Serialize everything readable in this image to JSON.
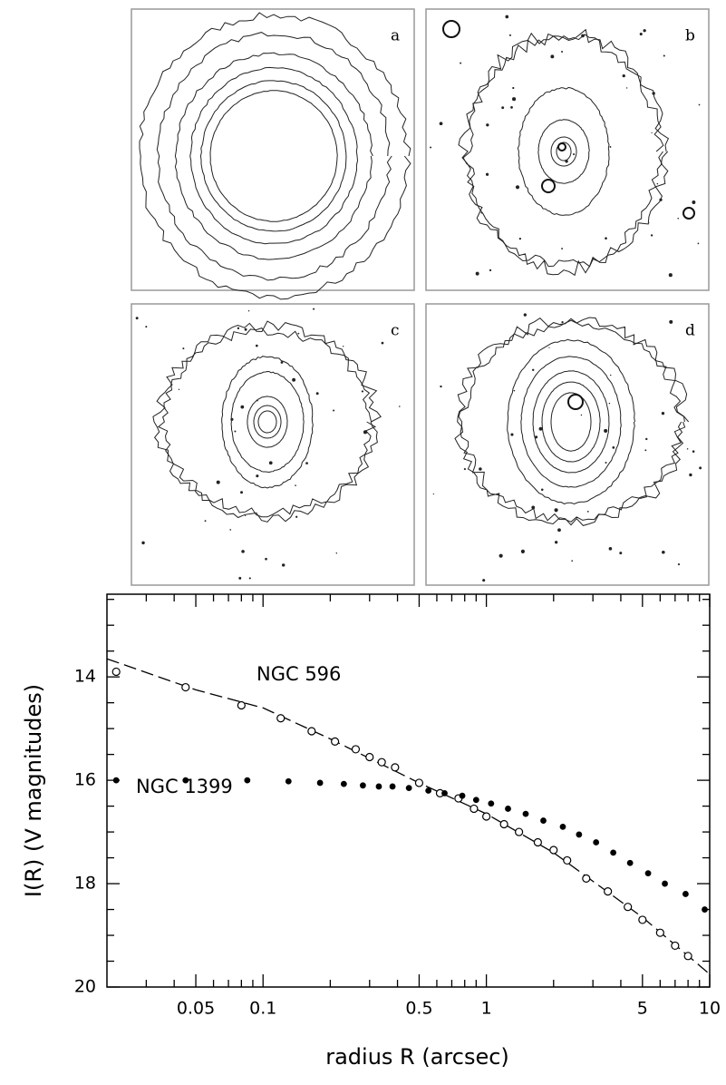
{
  "panels": [
    {
      "label": "a"
    },
    {
      "label": "b"
    },
    {
      "label": "c"
    },
    {
      "label": "d"
    }
  ],
  "chart_data": {
    "type": "scatter",
    "xscale": "log",
    "xlabel": "radius R (arcsec)",
    "ylabel": "I(R)  (V magnitudes)",
    "xlim": [
      0.02,
      10
    ],
    "ylim": [
      20,
      12.4
    ],
    "xticks": [
      0.05,
      0.1,
      0.5,
      1,
      5,
      10
    ],
    "xminor": [
      0.03,
      0.04,
      0.06,
      0.07,
      0.08,
      0.09,
      0.2,
      0.3,
      0.4,
      0.6,
      0.7,
      0.8,
      0.9,
      2,
      3,
      4,
      6,
      7,
      8,
      9
    ],
    "yticks": [
      14,
      16,
      18,
      20
    ],
    "yminor": [
      12.5,
      13,
      13.5,
      14.5,
      15,
      15.5,
      16.5,
      17,
      17.5,
      18.5,
      19,
      19.5
    ],
    "series": [
      {
        "name": "NGC 596",
        "marker": "open",
        "color": "#000000",
        "x": [
          0.022,
          0.045,
          0.08,
          0.12,
          0.165,
          0.21,
          0.26,
          0.3,
          0.34,
          0.39,
          0.5,
          0.62,
          0.75,
          0.88,
          1.0,
          1.2,
          1.4,
          1.7,
          2.0,
          2.3,
          2.8,
          3.5,
          4.3,
          5.0,
          6.0,
          7.0,
          8.0
        ],
        "values": [
          13.9,
          14.2,
          14.55,
          14.8,
          15.05,
          15.25,
          15.4,
          15.55,
          15.65,
          15.75,
          16.05,
          16.25,
          16.35,
          16.55,
          16.7,
          16.85,
          17.0,
          17.2,
          17.35,
          17.55,
          17.9,
          18.15,
          18.45,
          18.7,
          18.95,
          19.2,
          19.4
        ]
      },
      {
        "name": "NGC 1399",
        "marker": "filled",
        "color": "#000000",
        "x": [
          0.022,
          0.045,
          0.085,
          0.13,
          0.18,
          0.23,
          0.28,
          0.33,
          0.38,
          0.45,
          0.55,
          0.65,
          0.78,
          0.9,
          1.05,
          1.25,
          1.5,
          1.8,
          2.2,
          2.6,
          3.1,
          3.7,
          4.4,
          5.3,
          6.3,
          7.8,
          9.5
        ],
        "values": [
          16.0,
          16.0,
          16.0,
          16.02,
          16.05,
          16.07,
          16.1,
          16.12,
          16.12,
          16.15,
          16.2,
          16.25,
          16.3,
          16.38,
          16.45,
          16.55,
          16.65,
          16.78,
          16.9,
          17.05,
          17.2,
          17.4,
          17.6,
          17.8,
          18.0,
          18.2,
          18.5
        ]
      }
    ],
    "fit": {
      "dash": true,
      "x": [
        0.02,
        0.05,
        0.1,
        0.2,
        0.5,
        1,
        2,
        5,
        10
      ],
      "values": [
        13.65,
        14.25,
        14.6,
        15.2,
        16.05,
        16.65,
        17.4,
        18.65,
        19.75
      ]
    }
  }
}
